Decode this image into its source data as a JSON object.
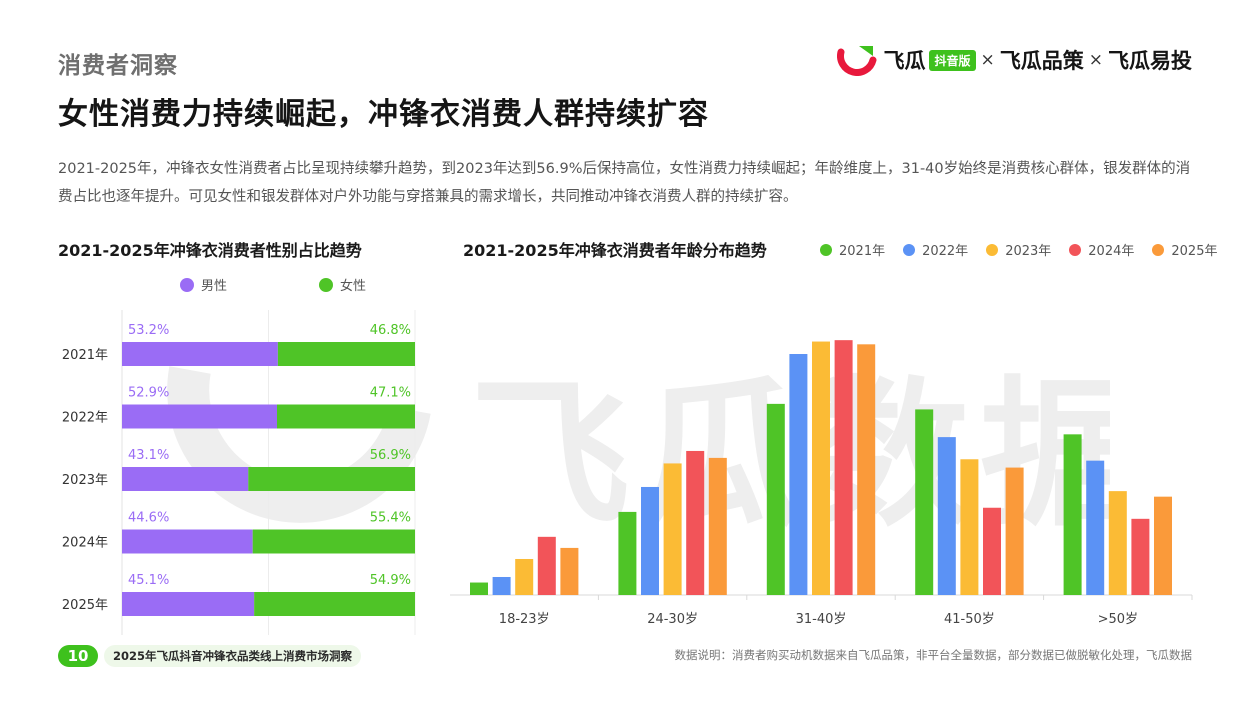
{
  "header": {
    "section_label": "消费者洞察",
    "headline": "女性消费力持续崛起，冲锋衣消费人群持续扩容",
    "description": "2021-2025年，冲锋衣女性消费者占比呈现持续攀升趋势，到2023年达到56.9%后保持高位，女性消费力持续崛起；年龄维度上，31-40岁始终是消费核心群体，银发群体的消费占比也逐年提升。可见女性和银发群体对户外功能与穿搭兼具的需求增长，共同推动冲锋衣消费人群的持续扩容。"
  },
  "brand": {
    "name1": "飞瓜",
    "tag": "抖音版",
    "sep": "×",
    "name2": "飞瓜品策",
    "name3": "飞瓜易投",
    "watermark": "飞瓜数据"
  },
  "footer": {
    "page_number": "10",
    "report_title": "2025年飞瓜抖音冲锋衣品类线上消费市场洞察",
    "note": "数据说明：消费者购买动机数据来自飞瓜品策，非平台全量数据，部分数据已做脱敏化处理，飞瓜数据"
  },
  "colors": {
    "male": "#9a6cf5",
    "female": "#4fc427",
    "y2021": "#4fc427",
    "y2022": "#5b92f5",
    "y2023": "#fbbb35",
    "y2024": "#f25459",
    "y2025": "#fa9a3a"
  },
  "chart_data": [
    {
      "type": "bar",
      "orientation": "horizontal-stacked-100",
      "title": "2021-2025年冲锋衣消费者性别占比趋势",
      "categories": [
        "2021年",
        "2022年",
        "2023年",
        "2024年",
        "2025年"
      ],
      "series": [
        {
          "name": "男性",
          "values": [
            53.2,
            52.9,
            43.1,
            44.6,
            45.1
          ],
          "labels": [
            "53.2%",
            "52.9%",
            "43.1%",
            "44.6%",
            "45.1%"
          ]
        },
        {
          "name": "女性",
          "values": [
            46.8,
            47.1,
            56.9,
            55.4,
            54.9
          ],
          "labels": [
            "46.8%",
            "47.1%",
            "56.9%",
            "55.4%",
            "54.9%"
          ]
        }
      ],
      "legend_position": "top"
    },
    {
      "type": "bar",
      "title": "2021-2025年冲锋衣消费者年龄分布趋势",
      "categories": [
        "18-23岁",
        "24-30岁",
        "31-40岁",
        "41-50岁",
        ">50岁"
      ],
      "series": [
        {
          "name": "2021年",
          "values": [
            4.5,
            30,
            69,
            67,
            58
          ]
        },
        {
          "name": "2022年",
          "values": [
            6.5,
            39,
            87,
            57,
            48.5
          ]
        },
        {
          "name": "2023年",
          "values": [
            13,
            47.5,
            91.5,
            49,
            37.5
          ]
        },
        {
          "name": "2024年",
          "values": [
            21,
            52,
            92,
            31.5,
            27.5
          ]
        },
        {
          "name": "2025年",
          "values": [
            17,
            49.5,
            90.5,
            46,
            35.5
          ]
        }
      ],
      "ylim": [
        0,
        100
      ],
      "legend_position": "top-right"
    }
  ]
}
